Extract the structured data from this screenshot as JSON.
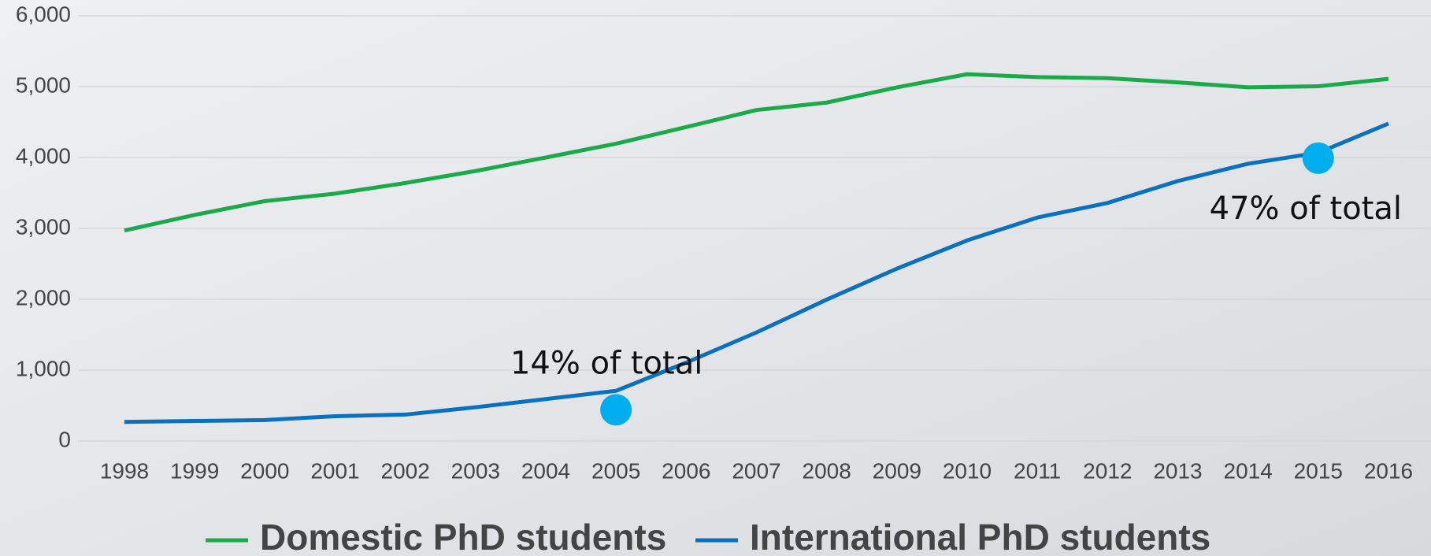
{
  "chart_data": {
    "type": "line",
    "categories": [
      "1998",
      "1999",
      "2000",
      "2001",
      "2002",
      "2003",
      "2004",
      "2005",
      "2006",
      "2007",
      "2008",
      "2009",
      "2010",
      "2011",
      "2012",
      "2013",
      "2014",
      "2015",
      "2016"
    ],
    "series": [
      {
        "name": "Domestic PhD students",
        "color": "#1aaa4a",
        "values": [
          2970,
          3190,
          3385,
          3490,
          3640,
          3810,
          4000,
          4195,
          4430,
          4670,
          4775,
          4990,
          5175,
          5135,
          5120,
          5060,
          4990,
          5005,
          5110
        ]
      },
      {
        "name": "International PhD students",
        "color": "#0a70c0",
        "values": [
          270,
          283,
          296,
          350,
          373,
          476,
          592,
          708,
          1107,
          1532,
          1995,
          2432,
          2830,
          3153,
          3359,
          3668,
          3912,
          4067,
          4479
        ]
      }
    ],
    "ylim": [
      0,
      6000
    ],
    "yticks": [
      0,
      {
        "value": 1000,
        "label": "1,000"
      },
      {
        "value": 2000,
        "label": "2,000"
      },
      {
        "value": 3000,
        "label": "3,000"
      },
      {
        "value": 4000,
        "label": "4,000"
      },
      {
        "value": 5000,
        "label": "5,000"
      },
      {
        "value": 6000,
        "label": "6,000"
      }
    ],
    "grid": true,
    "annotations": [
      {
        "text": "14% of total",
        "x": "2005",
        "y": 440,
        "color": "#00aeef"
      },
      {
        "text": "47% of total",
        "x": "2015",
        "y": 3990,
        "color": "#00aeef"
      }
    ]
  }
}
